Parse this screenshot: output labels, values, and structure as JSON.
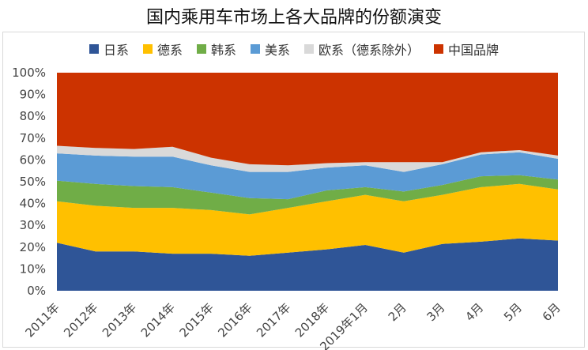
{
  "chart_data": {
    "type": "area",
    "stacked": true,
    "percent": true,
    "title": "国内乘用车市场上各大品牌的份额演变",
    "xlabel": "",
    "ylabel": "",
    "ylim": [
      0,
      100
    ],
    "yticks": [
      "0%",
      "10%",
      "20%",
      "30%",
      "40%",
      "50%",
      "60%",
      "70%",
      "80%",
      "90%",
      "100%"
    ],
    "categories": [
      "2011年",
      "2012年",
      "2013年",
      "2014年",
      "2015年",
      "2016年",
      "2017年",
      "2018年",
      "2019年1月",
      "2月",
      "3月",
      "4月",
      "5月",
      "6月"
    ],
    "legend_position": "top",
    "grid": false,
    "series": [
      {
        "name": "日系",
        "color": "#2f5597",
        "values": [
          22,
          18,
          18,
          17,
          17,
          16,
          17.5,
          19,
          21,
          17.5,
          21.5,
          22.5,
          24,
          23
        ]
      },
      {
        "name": "德系",
        "color": "#ffc000",
        "values": [
          19,
          21,
          20,
          21,
          20,
          19,
          20.5,
          22,
          23,
          23.5,
          22.5,
          25,
          25,
          23.5
        ]
      },
      {
        "name": "韩系",
        "color": "#70ad47",
        "values": [
          9.5,
          10,
          10,
          9.5,
          8,
          7.5,
          4,
          5,
          3.5,
          4.5,
          4.5,
          5,
          4,
          4.5
        ]
      },
      {
        "name": "美系",
        "color": "#5b9bd5",
        "values": [
          12.5,
          13,
          13.5,
          14,
          12.5,
          12,
          12.5,
          10.5,
          10,
          9,
          9.5,
          10,
          10.5,
          9.5
        ]
      },
      {
        "name": "欧系（德系除外）",
        "color": "#d9d9d9",
        "values": [
          3.5,
          3.5,
          3.5,
          4.5,
          3.5,
          3.5,
          3,
          2,
          1.5,
          4.5,
          1,
          1,
          1,
          1.5
        ]
      },
      {
        "name": "中国品牌",
        "color": "#cc3300",
        "values": [
          33.5,
          34.5,
          35,
          34,
          39,
          42,
          42.5,
          41.5,
          41,
          41,
          41,
          36.5,
          35.5,
          38
        ]
      }
    ]
  }
}
